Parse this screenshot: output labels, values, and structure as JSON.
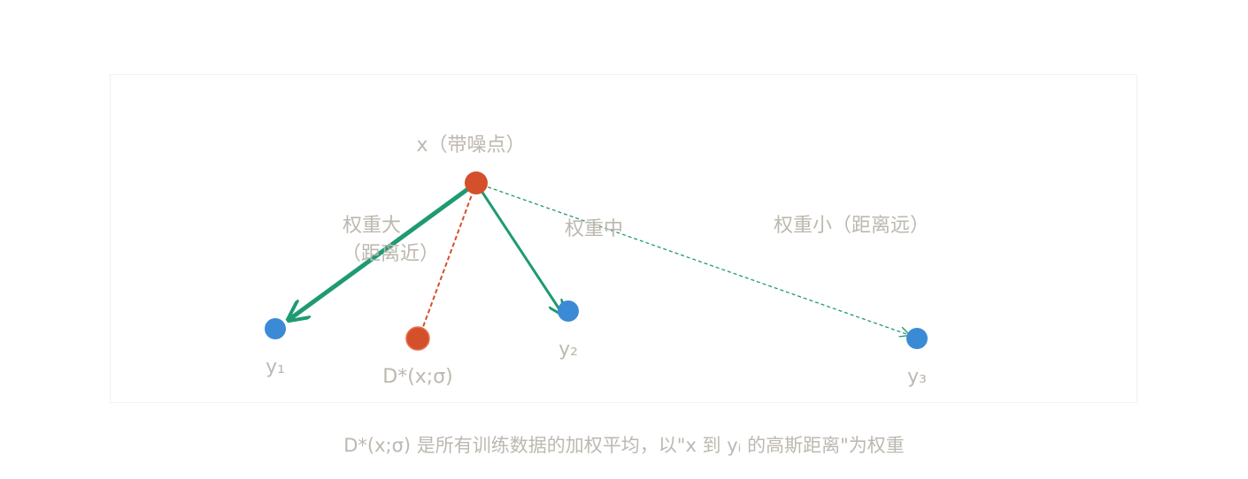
{
  "nodes": [
    {
      "label": "x（带噪点）"
    },
    {
      "label": "y₁"
    },
    {
      "label": "y₂"
    },
    {
      "label": "y₃"
    },
    {
      "label": "D*(x;σ)"
    }
  ],
  "edges": [
    {
      "label": [
        "权重大",
        "（距离近）"
      ]
    },
    {
      "label": "权重中"
    },
    {
      "label": "权重小（距离远）"
    }
  ],
  "caption": "D*(x;σ) 是所有训练数据的加权平均，以\"x 到 yᵢ 的高斯距离\"为权重"
}
